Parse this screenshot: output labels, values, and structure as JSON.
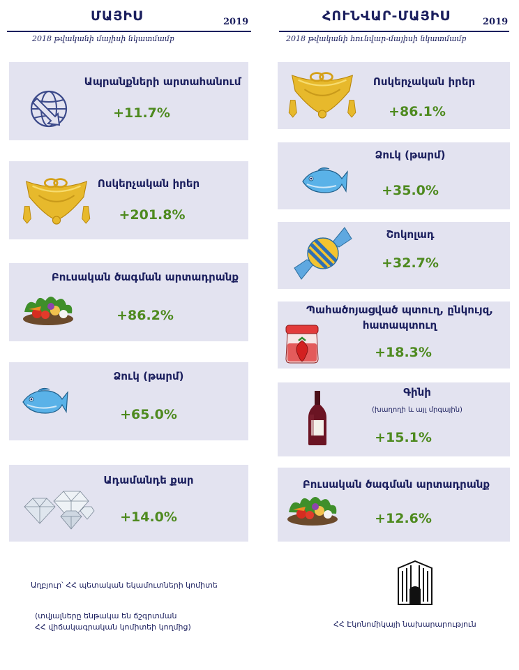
{
  "left": {
    "title": "ՄԱՅԻՍ",
    "year": "2019",
    "subtitle": "2018 թվականի մայիսի նկատմամբ",
    "items": [
      {
        "label": "Ապրանքների արտահանում",
        "value": "+11.7%"
      },
      {
        "label": "Ոսկերչական իրեր",
        "value": "+201.8%"
      },
      {
        "label": "Բուսական ծագման արտադրանք",
        "value": "+86.2%"
      },
      {
        "label": "Ձուկ (թարմ)",
        "value": "+65.0%"
      },
      {
        "label": "Ադամանդե քար",
        "value": "+14.0%"
      }
    ]
  },
  "right": {
    "title": "ՀՈՒՆՎԱՐ-ՄԱՅԻՍ",
    "year": "2019",
    "subtitle": "2018 թվականի հունվար-մայիսի նկատմամբ",
    "items": [
      {
        "label": "Ոսկերչական իրեր",
        "value": "+86.1%"
      },
      {
        "label": "Ձուկ (թարմ)",
        "value": "+35.0%"
      },
      {
        "label": "Շոկոլադ",
        "value": "+32.7%"
      },
      {
        "label": "Պահածոյացված պտուղ, ընկույզ,",
        "label2": "հատապտուղ",
        "value": "+18.3%"
      },
      {
        "label": "Գինի",
        "note": "(խաղողի և այլ մրգային)",
        "value": "+15.1%"
      },
      {
        "label": "Բուսական ծագման արտադրանք",
        "value": "+12.6%"
      }
    ]
  },
  "footer": {
    "source": "Աղբյուր՝ ՀՀ պետական եկամուտների կոմիտե",
    "note1": "(տվյալները ենթակա են ճշգրտման",
    "note2": "ՀՀ վիճակագրական կոմիտեի կողմից)",
    "ministry": "ՀՀ Էկոնոմիկայի նախարարություն"
  },
  "icons": {
    "globe": "globe-export-icon",
    "gold": "gold-jewelry-icon",
    "vegetables": "vegetables-icon",
    "fish": "fish-icon",
    "diamond": "diamond-icon",
    "candy": "candy-icon",
    "jam": "jam-jar-icon",
    "wine": "wine-bottle-icon",
    "ministry_logo": "ministry-building-logo"
  },
  "colors": {
    "navy": "#1b1f5e",
    "green": "#4e8a1f",
    "card": "#e3e3f0"
  }
}
